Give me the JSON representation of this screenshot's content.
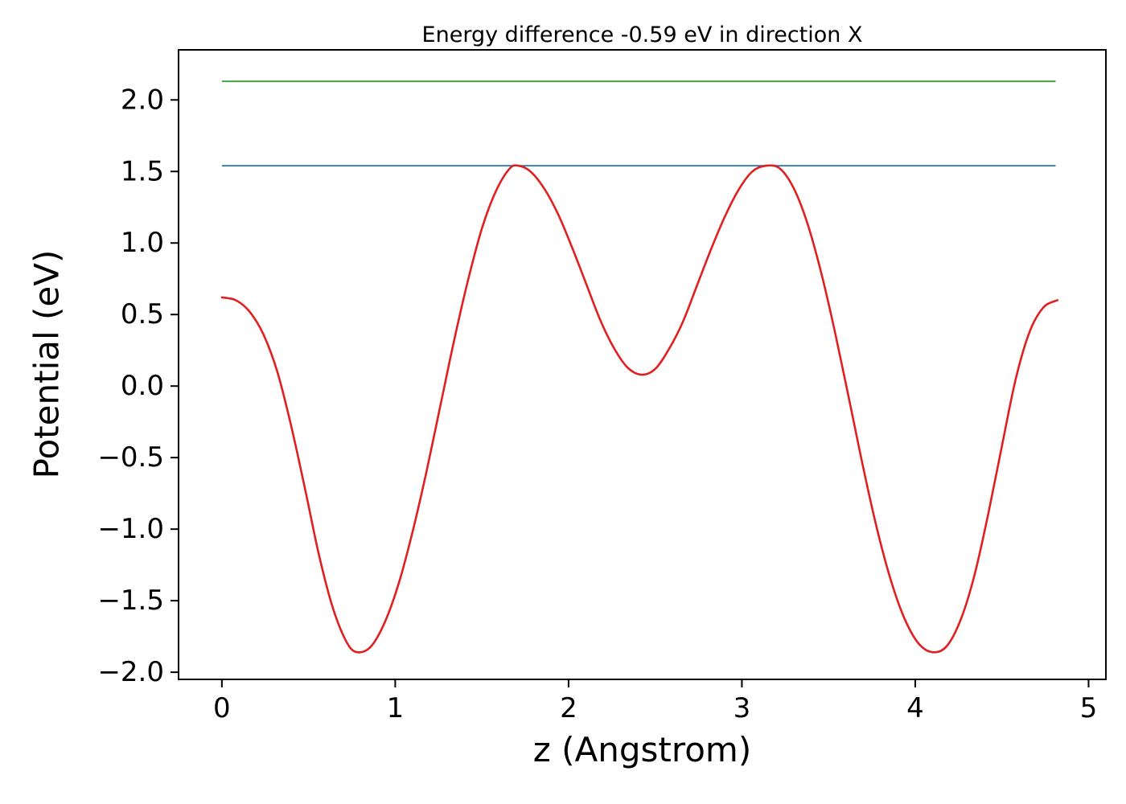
{
  "chart_data": {
    "type": "line",
    "title": "Energy difference -0.59 eV in direction X",
    "xlabel": "z (Angstrom)",
    "ylabel": "Potential (eV)",
    "xlim": [
      -0.25,
      5.1
    ],
    "ylim": [
      -2.05,
      2.35
    ],
    "grid": false,
    "legend_position": "none",
    "xticks": {
      "values": [
        0,
        1,
        2,
        3,
        4,
        5
      ],
      "labels": [
        "0",
        "1",
        "2",
        "3",
        "4",
        "5"
      ]
    },
    "yticks": {
      "values": [
        -2.0,
        -1.5,
        -1.0,
        -0.5,
        0.0,
        0.5,
        1.0,
        1.5,
        2.0
      ],
      "labels": [
        "−2.0",
        "−1.5",
        "−1.0",
        "−0.5",
        "0.0",
        "0.5",
        "1.0",
        "1.5",
        "2.0"
      ]
    },
    "colors": {
      "curve": "#e02020",
      "upper_level": "#3a9e3a",
      "lower_level": "#1f77b4",
      "axis": "#000000"
    },
    "series": [
      {
        "name": "potential-curve",
        "kind": "line",
        "color": "#e02020",
        "linewidth": 2.6,
        "x": [
          0.0,
          0.08,
          0.16,
          0.24,
          0.32,
          0.4,
          0.48,
          0.56,
          0.64,
          0.72,
          0.78,
          0.86,
          0.94,
          1.02,
          1.1,
          1.18,
          1.26,
          1.34,
          1.42,
          1.5,
          1.58,
          1.66,
          1.71,
          1.78,
          1.86,
          1.94,
          2.02,
          2.1,
          2.18,
          2.26,
          2.34,
          2.42,
          2.5,
          2.58,
          2.66,
          2.74,
          2.82,
          2.9,
          2.98,
          3.06,
          3.14,
          3.22,
          3.3,
          3.38,
          3.46,
          3.54,
          3.62,
          3.7,
          3.78,
          3.86,
          3.94,
          4.02,
          4.1,
          4.18,
          4.26,
          4.34,
          4.42,
          4.5,
          4.58,
          4.66,
          4.74,
          4.82
        ],
        "y": [
          0.62,
          0.6,
          0.52,
          0.36,
          0.1,
          -0.28,
          -0.72,
          -1.18,
          -1.55,
          -1.79,
          -1.86,
          -1.82,
          -1.65,
          -1.38,
          -1.02,
          -0.6,
          -0.14,
          0.32,
          0.74,
          1.1,
          1.36,
          1.52,
          1.54,
          1.5,
          1.38,
          1.2,
          0.97,
          0.72,
          0.47,
          0.27,
          0.13,
          0.08,
          0.12,
          0.26,
          0.45,
          0.7,
          0.95,
          1.18,
          1.37,
          1.5,
          1.54,
          1.52,
          1.38,
          1.13,
          0.78,
          0.36,
          -0.1,
          -0.57,
          -1.0,
          -1.36,
          -1.63,
          -1.8,
          -1.86,
          -1.82,
          -1.64,
          -1.33,
          -0.9,
          -0.42,
          0.05,
          0.38,
          0.55,
          0.6
        ]
      },
      {
        "name": "upper-energy-level",
        "kind": "hline",
        "color": "#3a9e3a",
        "linewidth": 1.8,
        "y": 2.13,
        "x_start": 0.0,
        "x_end": 4.81
      },
      {
        "name": "lower-energy-level",
        "kind": "hline",
        "color": "#1f77b4",
        "linewidth": 1.8,
        "y": 1.54,
        "x_start": 0.0,
        "x_end": 4.81
      }
    ]
  }
}
